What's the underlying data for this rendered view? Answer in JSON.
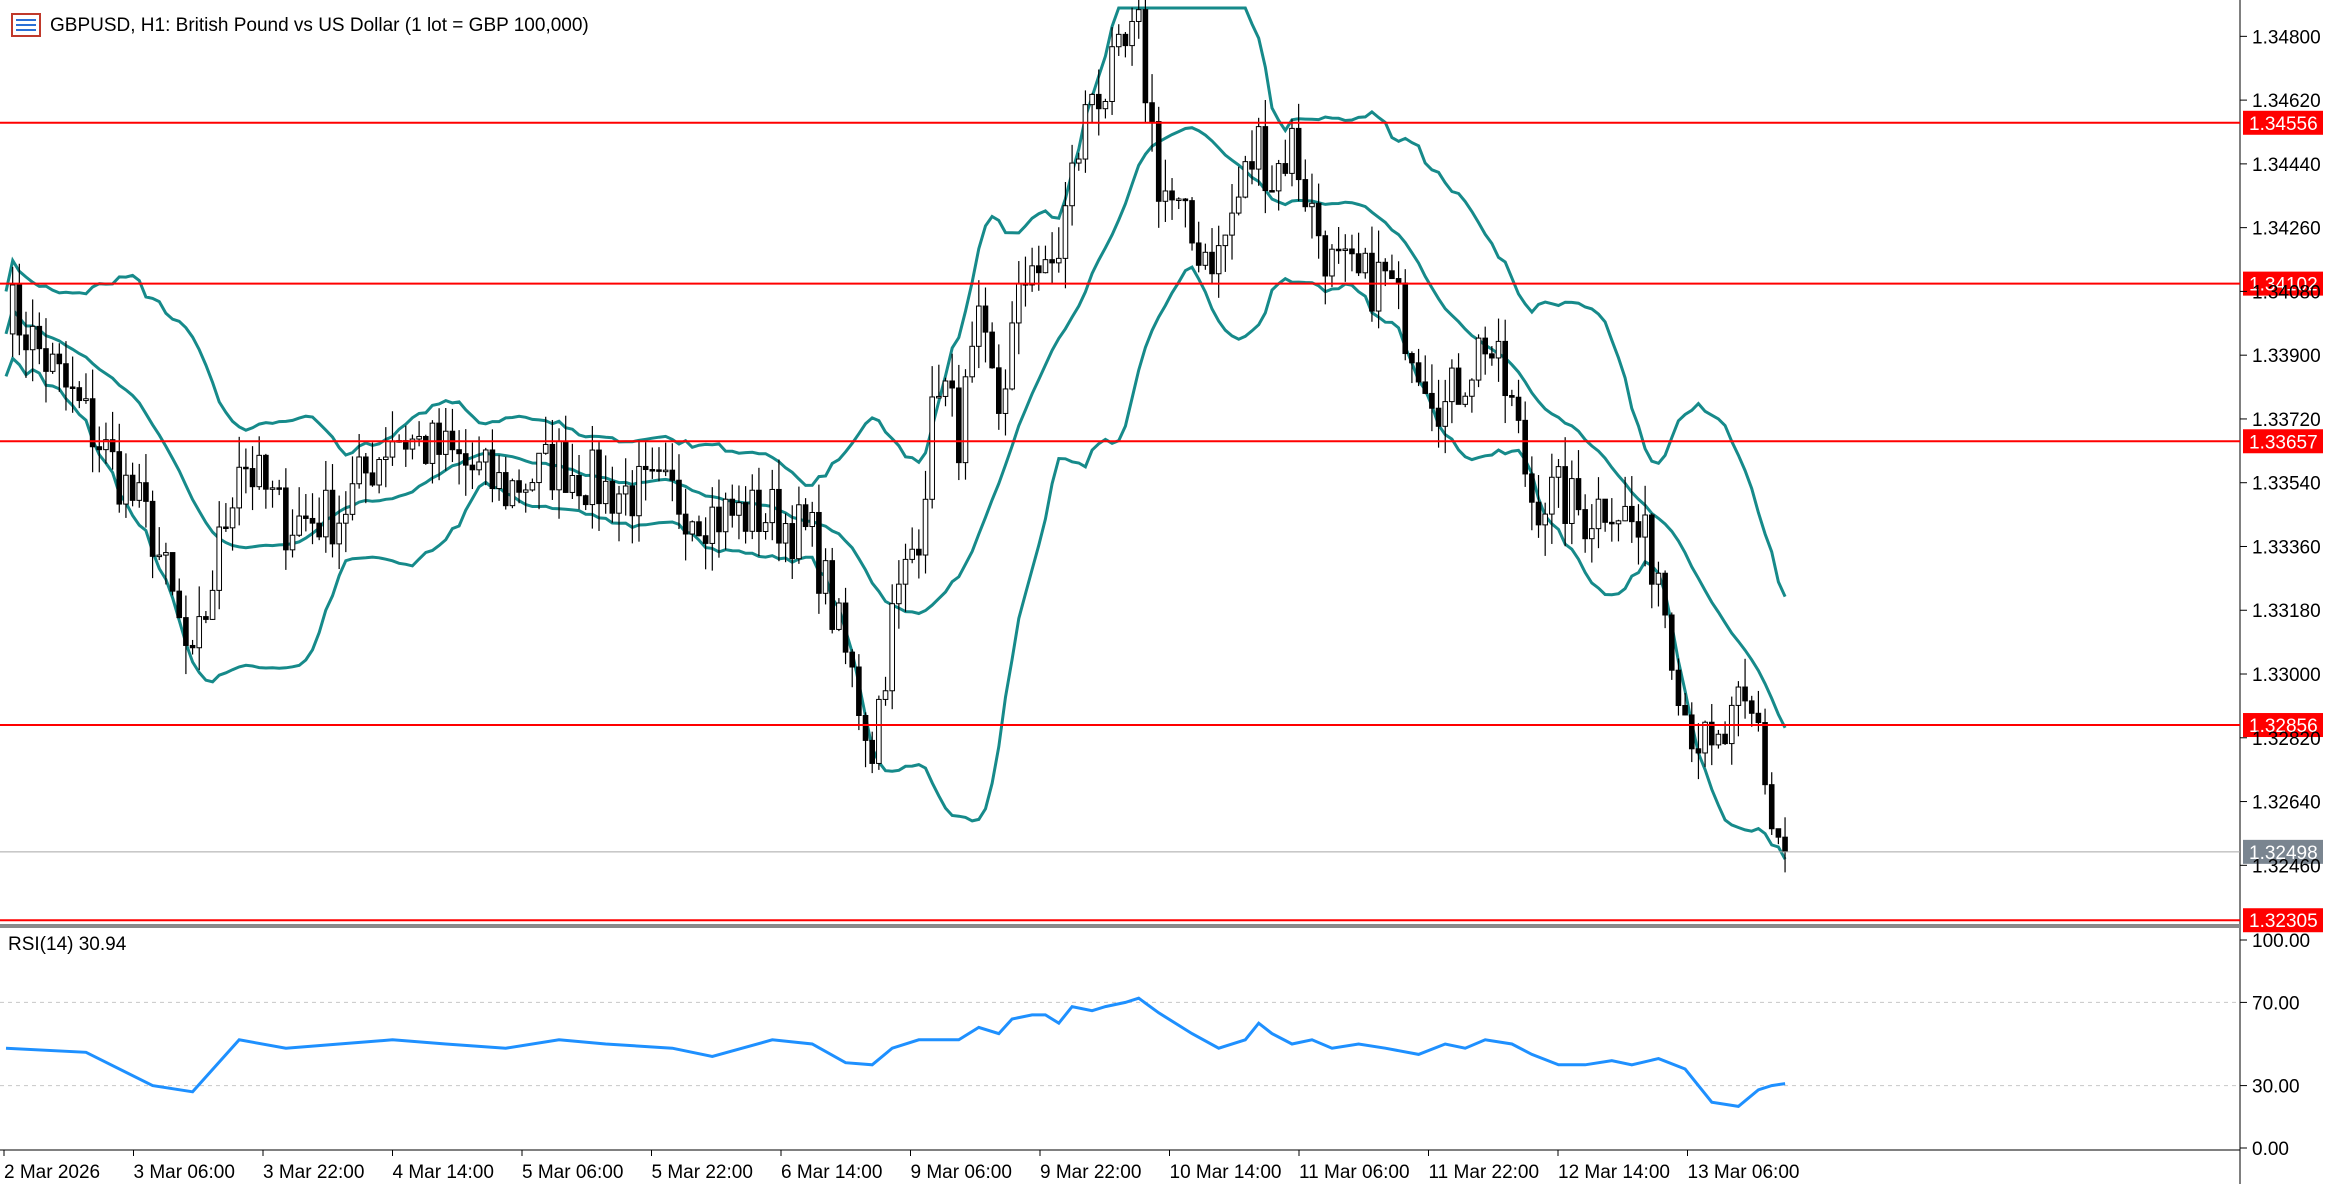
{
  "header": {
    "title": "GBPUSD, H1:  British Pound vs US Dollar (1 lot = GBP 100,000)",
    "menu_icon": "chart-window-icon"
  },
  "rsi_panel": {
    "label": "RSI(14) 30.94"
  },
  "colors": {
    "background": "#ffffff",
    "bollinger": "#168a8a",
    "level_line": "#ff0000",
    "level_tag": "#ff0000",
    "current_tag": "#7a8590",
    "rsi_line": "#1e90ff",
    "bull_candle_fill": "#ffffff",
    "bear_candle_fill": "#000000"
  },
  "chart_data": [
    {
      "type": "candlestick",
      "title": "GBPUSD, H1:  British Pound vs US Dollar (1 lot = GBP 100,000)",
      "y_ticks": [
        "1.34800",
        "1.34620",
        "1.34440",
        "1.34260",
        "1.34080",
        "1.33900",
        "1.33720",
        "1.33540",
        "1.33360",
        "1.33180",
        "1.33000",
        "1.32820",
        "1.32640",
        "1.32460"
      ],
      "ylim": [
        1.323,
        1.3488
      ],
      "x_ticks": [
        "2 Mar 2026",
        "3 Mar 06:00",
        "3 Mar 22:00",
        "4 Mar 14:00",
        "5 Mar 06:00",
        "5 Mar 22:00",
        "6 Mar 14:00",
        "9 Mar 06:00",
        "9 Mar 22:00",
        "10 Mar 14:00",
        "11 Mar 06:00",
        "11 Mar 22:00",
        "12 Mar 14:00",
        "13 Mar 06:00"
      ],
      "horizontal_levels": [
        "1.34556",
        "1.34102",
        "1.33657",
        "1.32856",
        "1.32305"
      ],
      "current_price": "1.32498",
      "indicator": "Bollinger Bands",
      "close_path": [
        [
          0,
          1.3405
        ],
        [
          12,
          1.3372
        ],
        [
          22,
          1.334
        ],
        [
          28,
          1.33
        ],
        [
          35,
          1.3362
        ],
        [
          42,
          1.3343
        ],
        [
          50,
          1.3345
        ],
        [
          58,
          1.3368
        ],
        [
          66,
          1.3362
        ],
        [
          75,
          1.3352
        ],
        [
          83,
          1.336
        ],
        [
          90,
          1.3352
        ],
        [
          100,
          1.335
        ],
        [
          106,
          1.3345
        ],
        [
          115,
          1.3345
        ],
        [
          121,
          1.3338
        ],
        [
          126,
          1.3305
        ],
        [
          130,
          1.328
        ],
        [
          133,
          1.3315
        ],
        [
          137,
          1.3342
        ],
        [
          140,
          1.3385
        ],
        [
          143,
          1.3368
        ],
        [
          146,
          1.3395
        ],
        [
          149,
          1.3375
        ],
        [
          151,
          1.3395
        ],
        [
          154,
          1.342
        ],
        [
          156,
          1.341
        ],
        [
          158,
          1.342
        ],
        [
          160,
          1.344
        ],
        [
          163,
          1.3465
        ],
        [
          165,
          1.3465
        ],
        [
          168,
          1.3475
        ],
        [
          170,
          1.348
        ],
        [
          173,
          1.344
        ],
        [
          178,
          1.3422
        ],
        [
          182,
          1.3418
        ],
        [
          186,
          1.344
        ],
        [
          188,
          1.345
        ],
        [
          190,
          1.344
        ],
        [
          193,
          1.345
        ],
        [
          196,
          1.343
        ],
        [
          199,
          1.3415
        ],
        [
          203,
          1.341
        ],
        [
          207,
          1.3412
        ],
        [
          212,
          1.339
        ],
        [
          216,
          1.3375
        ],
        [
          219,
          1.3385
        ],
        [
          222,
          1.3395
        ],
        [
          226,
          1.3375
        ],
        [
          229,
          1.335
        ],
        [
          233,
          1.335
        ],
        [
          237,
          1.3345
        ],
        [
          241,
          1.335
        ],
        [
          244,
          1.3342
        ],
        [
          248,
          1.333
        ],
        [
          252,
          1.329
        ],
        [
          256,
          1.3275
        ],
        [
          260,
          1.3288
        ],
        [
          263,
          1.3285
        ],
        [
          265,
          1.3258
        ],
        [
          267,
          1.325
        ]
      ]
    },
    {
      "type": "line",
      "title": "RSI(14) 30.94",
      "y_ticks": [
        "100.00",
        "70.00",
        "30.00",
        "0.00"
      ],
      "ylim": [
        0,
        100
      ],
      "levels": [
        70,
        30
      ],
      "series": [
        {
          "name": "RSI(14)",
          "x": [
            0,
            12,
            22,
            28,
            35,
            42,
            50,
            58,
            66,
            75,
            83,
            90,
            100,
            106,
            115,
            121,
            126,
            130,
            133,
            137,
            140,
            143,
            146,
            149,
            151,
            154,
            156,
            158,
            160,
            163,
            165,
            168,
            170,
            173,
            178,
            182,
            186,
            188,
            190,
            193,
            196,
            199,
            203,
            207,
            212,
            216,
            219,
            222,
            226,
            229,
            233,
            237,
            241,
            244,
            248,
            252,
            256,
            260,
            263,
            265,
            267
          ],
          "values": [
            48,
            46,
            30,
            27,
            52,
            48,
            50,
            52,
            50,
            48,
            52,
            50,
            48,
            44,
            52,
            50,
            41,
            40,
            48,
            52,
            52,
            52,
            58,
            55,
            62,
            64,
            64,
            60,
            68,
            66,
            68,
            70,
            72,
            65,
            55,
            48,
            52,
            60,
            55,
            50,
            52,
            48,
            50,
            48,
            45,
            50,
            48,
            52,
            50,
            45,
            40,
            40,
            42,
            40,
            43,
            38,
            22,
            20,
            28,
            30,
            30.94
          ]
        }
      ]
    }
  ]
}
